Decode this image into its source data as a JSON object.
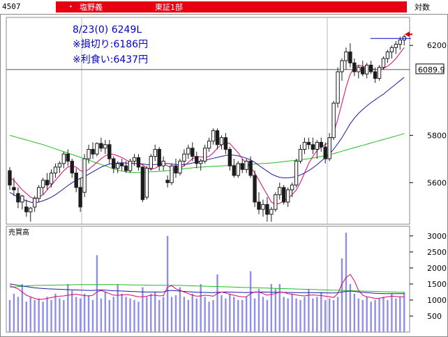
{
  "header": {
    "code": "4507",
    "bullet": "・",
    "name": "塩野義",
    "market": "東証1部",
    "scale_mode": "対数"
  },
  "colors": {
    "header_red": "#e60012",
    "candle": "#1c1c1c",
    "ma_short": "#e0006e",
    "ma_mid": "#1a1aa8",
    "ma_long": "#22bb22",
    "volume_bar": "#8f8fe8",
    "annotation_text": "#0000cc",
    "target_line": "#0000cc",
    "arrow": "#cc0000"
  },
  "annotations": {
    "line1": "8/23(0) 6249L",
    "line2": "※損切り:6186円",
    "line3": "※利食い:6437円"
  },
  "price_marker": "6089.9",
  "volume_label": "売買高",
  "chart_data": [
    {
      "type": "candlestick",
      "title": "",
      "y_ticks": [
        "6200",
        "5800",
        "5600"
      ],
      "scale": "log",
      "ylim": [
        5430,
        6330
      ],
      "horizontal_line": 6089.9,
      "target_line": 6232,
      "candles": [
        [
          5650,
          5665,
          5570,
          5590
        ],
        [
          5580,
          5620,
          5545,
          5570
        ],
        [
          5555,
          5580,
          5495,
          5520
        ],
        [
          5520,
          5550,
          5490,
          5545
        ],
        [
          5500,
          5530,
          5460,
          5480
        ],
        [
          5480,
          5500,
          5440,
          5495
        ],
        [
          5500,
          5545,
          5480,
          5535
        ],
        [
          5535,
          5590,
          5520,
          5580
        ],
        [
          5580,
          5620,
          5550,
          5610
        ],
        [
          5610,
          5640,
          5570,
          5590
        ],
        [
          5595,
          5655,
          5580,
          5640
        ],
        [
          5640,
          5680,
          5620,
          5665
        ],
        [
          5665,
          5690,
          5640,
          5680
        ],
        [
          5680,
          5730,
          5660,
          5720
        ],
        [
          5720,
          5740,
          5670,
          5690
        ],
        [
          5690,
          5700,
          5620,
          5640
        ],
        [
          5640,
          5660,
          5560,
          5580
        ],
        [
          5580,
          5620,
          5480,
          5500
        ],
        [
          5560,
          5720,
          5540,
          5700
        ],
        [
          5700,
          5760,
          5680,
          5740
        ],
        [
          5740,
          5770,
          5700,
          5720
        ],
        [
          5720,
          5770,
          5710,
          5765
        ],
        [
          5765,
          5790,
          5730,
          5745
        ],
        [
          5745,
          5780,
          5720,
          5760
        ],
        [
          5760,
          5780,
          5680,
          5700
        ],
        [
          5700,
          5710,
          5640,
          5660
        ],
        [
          5660,
          5690,
          5640,
          5680
        ],
        [
          5680,
          5700,
          5650,
          5670
        ],
        [
          5670,
          5690,
          5640,
          5650
        ],
        [
          5650,
          5700,
          5640,
          5690
        ],
        [
          5690,
          5720,
          5670,
          5705
        ],
        [
          5705,
          5720,
          5650,
          5665
        ],
        [
          5665,
          5670,
          5520,
          5530
        ],
        [
          5540,
          5670,
          5530,
          5660
        ],
        [
          5660,
          5720,
          5650,
          5710
        ],
        [
          5710,
          5760,
          5690,
          5740
        ],
        [
          5740,
          5750,
          5650,
          5670
        ],
        [
          5670,
          5710,
          5650,
          5690
        ],
        [
          5610,
          5630,
          5580,
          5600
        ],
        [
          5600,
          5680,
          5590,
          5670
        ],
        [
          5670,
          5700,
          5620,
          5640
        ],
        [
          5640,
          5700,
          5630,
          5690
        ],
        [
          5690,
          5740,
          5670,
          5720
        ],
        [
          5720,
          5760,
          5700,
          5745
        ],
        [
          5745,
          5770,
          5690,
          5710
        ],
        [
          5710,
          5730,
          5660,
          5680
        ],
        [
          5680,
          5700,
          5650,
          5690
        ],
        [
          5690,
          5760,
          5680,
          5745
        ],
        [
          5745,
          5790,
          5730,
          5775
        ],
        [
          5775,
          5830,
          5760,
          5820
        ],
        [
          5820,
          5830,
          5740,
          5760
        ],
        [
          5760,
          5800,
          5740,
          5790
        ],
        [
          5790,
          5810,
          5720,
          5740
        ],
        [
          5740,
          5750,
          5650,
          5670
        ],
        [
          5670,
          5700,
          5620,
          5630
        ],
        [
          5630,
          5690,
          5620,
          5680
        ],
        [
          5680,
          5700,
          5640,
          5655
        ],
        [
          5655,
          5700,
          5640,
          5690
        ],
        [
          5690,
          5710,
          5620,
          5630
        ],
        [
          5630,
          5650,
          5500,
          5520
        ],
        [
          5520,
          5560,
          5470,
          5490
        ],
        [
          5490,
          5530,
          5460,
          5510
        ],
        [
          5510,
          5540,
          5440,
          5470
        ],
        [
          5470,
          5500,
          5440,
          5490
        ],
        [
          5490,
          5560,
          5480,
          5550
        ],
        [
          5550,
          5600,
          5530,
          5580
        ],
        [
          5580,
          5590,
          5510,
          5520
        ],
        [
          5520,
          5580,
          5500,
          5570
        ],
        [
          5570,
          5600,
          5540,
          5590
        ],
        [
          5590,
          5700,
          5580,
          5690
        ],
        [
          5690,
          5760,
          5680,
          5740
        ],
        [
          5740,
          5790,
          5720,
          5770
        ],
        [
          5770,
          5790,
          5740,
          5760
        ],
        [
          5760,
          5790,
          5720,
          5740
        ],
        [
          5740,
          5780,
          5700,
          5770
        ],
        [
          5770,
          5790,
          5730,
          5750
        ],
        [
          5750,
          5770,
          5680,
          5700
        ],
        [
          5700,
          5810,
          5690,
          5790
        ],
        [
          5790,
          5950,
          5780,
          5940
        ],
        [
          5940,
          6100,
          5920,
          6080
        ],
        [
          6080,
          6140,
          6040,
          6130
        ],
        [
          6130,
          6190,
          6090,
          6170
        ],
        [
          6170,
          6210,
          6100,
          6120
        ],
        [
          6120,
          6140,
          6060,
          6080
        ],
        [
          6080,
          6110,
          6050,
          6100
        ],
        [
          6100,
          6130,
          6060,
          6070
        ],
        [
          6070,
          6120,
          6050,
          6110
        ],
        [
          6110,
          6130,
          6070,
          6080
        ],
        [
          6080,
          6100,
          6030,
          6050
        ],
        [
          6050,
          6110,
          6040,
          6100
        ],
        [
          6100,
          6150,
          6090,
          6140
        ],
        [
          6140,
          6180,
          6120,
          6170
        ],
        [
          6170,
          6200,
          6140,
          6190
        ],
        [
          6190,
          6220,
          6160,
          6205
        ],
        [
          6205,
          6240,
          6180,
          6225
        ],
        [
          6225,
          6250,
          6200,
          6240
        ]
      ],
      "ma_short": [
        5620,
        5610,
        5590,
        5570,
        5555,
        5540,
        5535,
        5540,
        5550,
        5570,
        5590,
        5610,
        5630,
        5650,
        5665,
        5670,
        5665,
        5650,
        5645,
        5655,
        5670,
        5685,
        5700,
        5712,
        5720,
        5718,
        5712,
        5705,
        5695,
        5685,
        5680,
        5680,
        5675,
        5660,
        5655,
        5660,
        5670,
        5680,
        5670,
        5660,
        5655,
        5660,
        5670,
        5685,
        5700,
        5708,
        5708,
        5705,
        5710,
        5725,
        5745,
        5760,
        5770,
        5765,
        5745,
        5725,
        5700,
        5680,
        5665,
        5640,
        5610,
        5580,
        5550,
        5520,
        5510,
        5515,
        5525,
        5535,
        5550,
        5570,
        5600,
        5640,
        5680,
        5710,
        5735,
        5750,
        5760,
        5770,
        5810,
        5870,
        5940,
        6010,
        6070,
        6100,
        6110,
        6105,
        6100,
        6095,
        6090,
        6090,
        6095,
        6105,
        6120,
        6140,
        6165,
        6190
      ],
      "ma_mid": [
        5560,
        5550,
        5540,
        5532,
        5525,
        5520,
        5518,
        5520,
        5525,
        5532,
        5540,
        5550,
        5562,
        5575,
        5588,
        5600,
        5610,
        5618,
        5625,
        5635,
        5645,
        5655,
        5665,
        5672,
        5678,
        5680,
        5682,
        5683,
        5682,
        5680,
        5680,
        5680,
        5678,
        5676,
        5675,
        5676,
        5678,
        5680,
        5680,
        5678,
        5676,
        5675,
        5676,
        5678,
        5682,
        5686,
        5690,
        5694,
        5698,
        5702,
        5706,
        5710,
        5714,
        5716,
        5715,
        5712,
        5708,
        5702,
        5695,
        5685,
        5672,
        5660,
        5648,
        5636,
        5628,
        5622,
        5620,
        5620,
        5622,
        5626,
        5632,
        5640,
        5650,
        5662,
        5675,
        5690,
        5705,
        5720,
        5740,
        5765,
        5790,
        5820,
        5850,
        5875,
        5895,
        5912,
        5928,
        5942,
        5955,
        5968,
        5980,
        5995,
        6010,
        6025,
        6040,
        6055
      ],
      "ma_long": [
        5800,
        5795,
        5790,
        5785,
        5780,
        5775,
        5770,
        5765,
        5760,
        5754,
        5748,
        5742,
        5736,
        5730,
        5724,
        5718,
        5712,
        5706,
        5700,
        5694,
        5688,
        5682,
        5676,
        5670,
        5664,
        5658,
        5652,
        5648,
        5645,
        5643,
        5642,
        5642,
        5643,
        5644,
        5645,
        5646,
        5647,
        5648,
        5650,
        5652,
        5654,
        5656,
        5658,
        5660,
        5662,
        5664,
        5665,
        5666,
        5667,
        5668,
        5669,
        5670,
        5671,
        5672,
        5673,
        5674,
        5675,
        5676,
        5677,
        5678,
        5679,
        5680,
        5681,
        5682,
        5684,
        5686,
        5688,
        5690,
        5692,
        5694,
        5696,
        5698,
        5700,
        5703,
        5706,
        5710,
        5714,
        5718,
        5722,
        5727,
        5732,
        5737,
        5742,
        5747,
        5752,
        5757,
        5762,
        5767,
        5772,
        5777,
        5782,
        5787,
        5792,
        5797,
        5802,
        5808
      ]
    },
    {
      "type": "bar",
      "title": "売買高",
      "y_ticks": [
        "3000",
        "2500",
        "2000",
        "1500",
        "1000",
        "500"
      ],
      "ylim": [
        0,
        3300
      ],
      "values": [
        1000,
        1200,
        1100,
        1500,
        950,
        1100,
        1000,
        1050,
        950,
        1100,
        1000,
        1200,
        1050,
        1000,
        1500,
        1300,
        1100,
        1050,
        1200,
        1150,
        1000,
        2400,
        1050,
        1250,
        1000,
        1100,
        1500,
        1200,
        1100,
        1050,
        1000,
        950,
        1400,
        1100,
        1200,
        1250,
        1000,
        1100,
        3000,
        1100,
        1150,
        1400,
        1100,
        1000,
        1200,
        1050,
        1500,
        1100,
        950,
        1000,
        1800,
        1150,
        1050,
        1200,
        1100,
        1000,
        1000,
        1100,
        1900,
        1050,
        1350,
        1100,
        1000,
        1500,
        1350,
        1500,
        1100,
        1050,
        1200,
        1050,
        1000,
        1100,
        1350,
        1050,
        1100,
        1250,
        1000,
        1050,
        1000,
        1100,
        2300,
        3100,
        1500,
        1200,
        1050,
        1000,
        1100,
        950,
        1000,
        1050,
        1100,
        1000,
        1200,
        1050,
        1100,
        1250
      ],
      "ma_short": [
        1450,
        1400,
        1350,
        1250,
        1150,
        1100,
        1050,
        1020,
        1030,
        1050,
        1080,
        1100,
        1120,
        1130,
        1150,
        1170,
        1180,
        1160,
        1140,
        1130,
        1150,
        1250,
        1300,
        1250,
        1200,
        1150,
        1150,
        1160,
        1170,
        1160,
        1130,
        1100,
        1100,
        1120,
        1150,
        1150,
        1130,
        1140,
        1400,
        1450,
        1350,
        1300,
        1250,
        1200,
        1150,
        1120,
        1130,
        1150,
        1140,
        1120,
        1200,
        1250,
        1220,
        1180,
        1150,
        1120,
        1100,
        1100,
        1200,
        1250,
        1250,
        1200,
        1150,
        1180,
        1200,
        1250,
        1240,
        1200,
        1180,
        1160,
        1140,
        1130,
        1150,
        1160,
        1150,
        1140,
        1120,
        1100,
        1080,
        1200,
        1500,
        1700,
        1800,
        1600,
        1300,
        1150,
        1100,
        1080,
        1050,
        1060,
        1080,
        1100,
        1120,
        1110,
        1100,
        1100
      ],
      "ma_mid": [
        1500,
        1480,
        1460,
        1440,
        1420,
        1400,
        1380,
        1370,
        1360,
        1350,
        1345,
        1340,
        1335,
        1330,
        1325,
        1320,
        1315,
        1310,
        1305,
        1300,
        1300,
        1310,
        1315,
        1310,
        1300,
        1290,
        1285,
        1280,
        1275,
        1270,
        1265,
        1260,
        1255,
        1250,
        1250,
        1250,
        1250,
        1255,
        1290,
        1300,
        1290,
        1280,
        1270,
        1260,
        1250,
        1245,
        1240,
        1238,
        1235,
        1232,
        1240,
        1248,
        1250,
        1248,
        1245,
        1240,
        1238,
        1236,
        1240,
        1245,
        1248,
        1250,
        1248,
        1246,
        1244,
        1242,
        1240,
        1238,
        1236,
        1234,
        1232,
        1230,
        1230,
        1230,
        1228,
        1226,
        1224,
        1222,
        1220,
        1228,
        1250,
        1270,
        1280,
        1270,
        1250,
        1240,
        1230,
        1220,
        1210,
        1205,
        1200,
        1200,
        1200,
        1200,
        1200,
        1200
      ],
      "ma_long": [
        1400,
        1410,
        1420,
        1430,
        1440,
        1450,
        1455,
        1460,
        1462,
        1464,
        1466,
        1468,
        1470,
        1472,
        1474,
        1476,
        1478,
        1480,
        1480,
        1480,
        1480,
        1482,
        1484,
        1484,
        1484,
        1482,
        1480,
        1478,
        1476,
        1474,
        1472,
        1470,
        1468,
        1466,
        1464,
        1462,
        1460,
        1458,
        1460,
        1462,
        1460,
        1456,
        1452,
        1448,
        1444,
        1440,
        1436,
        1432,
        1428,
        1424,
        1420,
        1416,
        1412,
        1408,
        1404,
        1400,
        1396,
        1392,
        1388,
        1384,
        1380,
        1376,
        1372,
        1368,
        1364,
        1360,
        1356,
        1352,
        1348,
        1344,
        1340,
        1336,
        1332,
        1328,
        1324,
        1320,
        1316,
        1312,
        1308,
        1304,
        1300,
        1296,
        1292,
        1288,
        1284,
        1280,
        1276,
        1272,
        1268,
        1264,
        1260,
        1256,
        1252,
        1248,
        1244,
        1240
      ]
    }
  ]
}
